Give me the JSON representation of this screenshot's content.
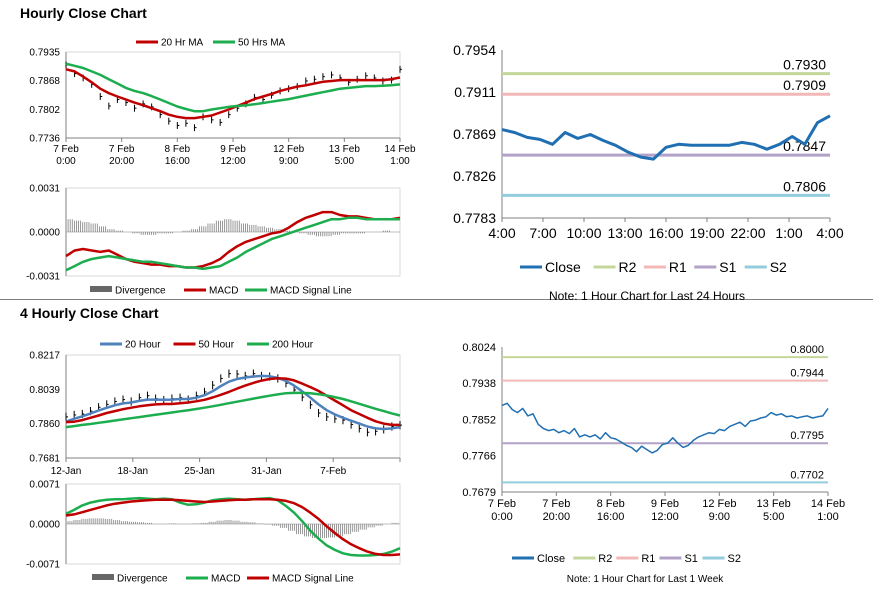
{
  "page": {
    "hourly_title": "Hourly Close Chart",
    "four_hourly_title": "4 Hourly Close Chart"
  },
  "colors": {
    "red": "#c00000",
    "green": "#1cae4e",
    "blue": "#4f81bd",
    "close_line": "#1f6fb2",
    "r2": "#c4d79b",
    "r1": "#f2b7b7",
    "s1": "#b3a2c7",
    "s2": "#93cddd",
    "grid": "#bfbfbf"
  },
  "chart_data": [
    {
      "id": "hourly_price",
      "type": "line",
      "legend": [
        "20 Hr MA",
        "50 Hrs MA"
      ],
      "yticks": [
        "0.7935",
        "0.7868",
        "0.7802",
        "0.7736"
      ],
      "ylim": [
        0.7736,
        0.7935
      ],
      "xticks": [
        [
          "7 Feb",
          "0:00"
        ],
        [
          "7 Feb",
          "20:00"
        ],
        [
          "8 Feb",
          "16:00"
        ],
        [
          "9 Feb",
          "12:00"
        ],
        [
          "12 Feb",
          "9:00"
        ],
        [
          "13 Feb",
          "5:00"
        ],
        [
          "14 Feb",
          "1:00"
        ]
      ],
      "bars_close": [
        0.7905,
        0.7885,
        0.7875,
        0.786,
        0.7832,
        0.781,
        0.7825,
        0.7818,
        0.7805,
        0.7815,
        0.7808,
        0.779,
        0.7775,
        0.7765,
        0.777,
        0.776,
        0.7785,
        0.7778,
        0.7772,
        0.779,
        0.7805,
        0.7815,
        0.783,
        0.7825,
        0.7835,
        0.7845,
        0.785,
        0.7855,
        0.7868,
        0.7872,
        0.7878,
        0.7882,
        0.7875,
        0.7865,
        0.7872,
        0.788,
        0.7875,
        0.7868,
        0.787,
        0.7895
      ],
      "series": [
        {
          "name": "20 Hr MA",
          "color": "red",
          "values": [
            0.7895,
            0.789,
            0.7878,
            0.7865,
            0.785,
            0.784,
            0.7832,
            0.7825,
            0.7818,
            0.7812,
            0.7805,
            0.7798,
            0.779,
            0.7785,
            0.7782,
            0.7782,
            0.7785,
            0.7788,
            0.7795,
            0.7802,
            0.781,
            0.7818,
            0.7826,
            0.7832,
            0.7838,
            0.7845,
            0.785,
            0.7855,
            0.7858,
            0.7862,
            0.7866,
            0.7868,
            0.787,
            0.787,
            0.787,
            0.787,
            0.787,
            0.787,
            0.7872,
            0.7876
          ]
        },
        {
          "name": "50 Hrs MA",
          "color": "green",
          "values": [
            0.7908,
            0.7903,
            0.7898,
            0.789,
            0.7882,
            0.7872,
            0.7862,
            0.7852,
            0.7845,
            0.784,
            0.7833,
            0.7825,
            0.7817,
            0.7809,
            0.7803,
            0.7798,
            0.7798,
            0.7802,
            0.7805,
            0.7808,
            0.781,
            0.7812,
            0.7814,
            0.7817,
            0.782,
            0.7823,
            0.7826,
            0.783,
            0.7834,
            0.7838,
            0.7842,
            0.7846,
            0.785,
            0.7852,
            0.7854,
            0.7856,
            0.7856,
            0.7857,
            0.7858,
            0.786
          ]
        }
      ]
    },
    {
      "id": "hourly_macd",
      "type": "line",
      "legend": [
        "Divergence",
        "MACD",
        "MACD Signal Line"
      ],
      "yticks": [
        "0.0031",
        "0.0000",
        "-0.0031"
      ],
      "ylim": [
        -0.0031,
        0.0031
      ],
      "divergence": [
        0.0009,
        0.0008,
        0.0007,
        0.0006,
        0.0004,
        0.0002,
        0.0001,
        0.0,
        -0.0001,
        -0.0002,
        -0.0002,
        -0.0001,
        -0.0001,
        0.0,
        0.0001,
        0.0002,
        0.0004,
        0.0006,
        0.0008,
        0.0009,
        0.0008,
        0.0006,
        0.0005,
        0.0004,
        0.0003,
        0.0002,
        0.0001,
        0.0,
        -0.0001,
        -0.0002,
        -0.0003,
        -0.0003,
        -0.0002,
        -0.0001,
        -0.0001,
        -0.0001,
        0.0,
        0.0,
        0.0001,
        0.0
      ],
      "series": [
        {
          "name": "MACD",
          "color": "red",
          "values": [
            -0.0017,
            -0.0013,
            -0.0012,
            -0.0013,
            -0.0014,
            -0.0013,
            -0.0016,
            -0.0019,
            -0.0021,
            -0.0022,
            -0.0023,
            -0.0023,
            -0.0024,
            -0.0024,
            -0.0025,
            -0.0025,
            -0.0024,
            -0.0022,
            -0.0019,
            -0.0014,
            -0.001,
            -0.0007,
            -0.0005,
            -0.0003,
            -0.0001,
            0.0,
            0.0003,
            0.0007,
            0.001,
            0.0012,
            0.0014,
            0.0014,
            0.0012,
            0.0011,
            0.0011,
            0.001,
            0.0009,
            0.0009,
            0.0009,
            0.001
          ]
        },
        {
          "name": "MACD Signal Line",
          "color": "green",
          "values": [
            -0.0027,
            -0.0024,
            -0.0021,
            -0.0019,
            -0.0018,
            -0.0017,
            -0.0018,
            -0.0019,
            -0.002,
            -0.0021,
            -0.0021,
            -0.0022,
            -0.0023,
            -0.0024,
            -0.0025,
            -0.0025,
            -0.0026,
            -0.0025,
            -0.0024,
            -0.0021,
            -0.0018,
            -0.0014,
            -0.0011,
            -0.0008,
            -0.0005,
            -0.0003,
            -0.0001,
            0.0001,
            0.0003,
            0.0005,
            0.0007,
            0.0009,
            0.0009,
            0.001,
            0.001,
            0.0009,
            0.0009,
            0.0009,
            0.0009,
            0.0009
          ]
        }
      ]
    },
    {
      "id": "hourly_levels",
      "type": "line",
      "yticks": [
        "0.7954",
        "0.7911",
        "0.7869",
        "0.7826",
        "0.7783"
      ],
      "ylim": [
        0.7783,
        0.7954
      ],
      "xticks": [
        "4:00",
        "7:00",
        "10:00",
        "13:00",
        "16:00",
        "19:00",
        "22:00",
        "1:00",
        "4:00"
      ],
      "levels": [
        {
          "name": "R2",
          "color": "r2",
          "value": 0.793,
          "label": "0.7930"
        },
        {
          "name": "R1",
          "color": "r1",
          "value": 0.7909,
          "label": "0.7909"
        },
        {
          "name": "S1",
          "color": "s1",
          "value": 0.7847,
          "label": "0.7847"
        },
        {
          "name": "S2",
          "color": "s2",
          "value": 0.7806,
          "label": "0.7806"
        }
      ],
      "close": [
        0.7873,
        0.787,
        0.7865,
        0.7863,
        0.7858,
        0.787,
        0.7864,
        0.7868,
        0.7862,
        0.7857,
        0.785,
        0.7845,
        0.7843,
        0.7855,
        0.7858,
        0.7857,
        0.7857,
        0.7857,
        0.7857,
        0.786,
        0.7858,
        0.7853,
        0.7858,
        0.7866,
        0.7858,
        0.788,
        0.7887
      ],
      "legend": [
        "Close",
        "R2",
        "R1",
        "S1",
        "S2"
      ],
      "note": "Note: 1 Hour Chart for Last 24 Hours"
    },
    {
      "id": "four_hourly_price",
      "type": "line",
      "legend": [
        "20 Hour",
        "50 Hour",
        "200 Hour"
      ],
      "yticks": [
        "0.8217",
        "0.8039",
        "0.7860",
        "0.7681"
      ],
      "ylim": [
        0.7681,
        0.8217
      ],
      "xticks": [
        "12-Jan",
        "18-Jan",
        "25-Jan",
        "31-Jan",
        "7-Feb"
      ],
      "bars_close": [
        0.7895,
        0.7905,
        0.791,
        0.7925,
        0.7945,
        0.796,
        0.7975,
        0.7985,
        0.7975,
        0.7995,
        0.8005,
        0.799,
        0.7982,
        0.799,
        0.7995,
        0.7985,
        0.8005,
        0.8025,
        0.806,
        0.8095,
        0.812,
        0.8118,
        0.8108,
        0.812,
        0.8108,
        0.8105,
        0.8095,
        0.807,
        0.8035,
        0.7998,
        0.7958,
        0.7915,
        0.7895,
        0.7885,
        0.7878,
        0.7855,
        0.7835,
        0.7815,
        0.782,
        0.783,
        0.7845,
        0.7852
      ],
      "series": [
        {
          "name": "20 Hour",
          "color": "blue",
          "values": [
            0.787,
            0.7885,
            0.7898,
            0.7912,
            0.7928,
            0.7942,
            0.7955,
            0.7965,
            0.797,
            0.7978,
            0.7985,
            0.7985,
            0.7984,
            0.7985,
            0.7988,
            0.7988,
            0.7995,
            0.8008,
            0.8028,
            0.8055,
            0.8078,
            0.8092,
            0.81,
            0.8105,
            0.8108,
            0.8106,
            0.8098,
            0.8082,
            0.8058,
            0.8028,
            0.7995,
            0.796,
            0.793,
            0.7908,
            0.789,
            0.7875,
            0.786,
            0.7845,
            0.7835,
            0.7832,
            0.7835,
            0.7842
          ]
        },
        {
          "name": "50 Hour",
          "color": "red",
          "values": [
            0.7868,
            0.787,
            0.7878,
            0.789,
            0.7902,
            0.7915,
            0.7925,
            0.7935,
            0.7943,
            0.795,
            0.7955,
            0.796,
            0.7962,
            0.7962,
            0.7966,
            0.797,
            0.7976,
            0.7984,
            0.7996,
            0.801,
            0.8025,
            0.8042,
            0.8058,
            0.8072,
            0.8084,
            0.8092,
            0.8096,
            0.8094,
            0.8085,
            0.8068,
            0.805,
            0.803,
            0.8005,
            0.798,
            0.7955,
            0.793,
            0.791,
            0.789,
            0.7872,
            0.786,
            0.7853,
            0.7853
          ]
        },
        {
          "name": "200 Hour",
          "color": "green",
          "values": [
            0.7842,
            0.7847,
            0.7853,
            0.7858,
            0.7864,
            0.787,
            0.7876,
            0.7882,
            0.7888,
            0.7894,
            0.79,
            0.7906,
            0.7912,
            0.7918,
            0.7924,
            0.793,
            0.7936,
            0.7943,
            0.795,
            0.7958,
            0.7966,
            0.7974,
            0.7982,
            0.799,
            0.7998,
            0.8005,
            0.8012,
            0.8018,
            0.802,
            0.802,
            0.8018,
            0.8013,
            0.8006,
            0.7998,
            0.7988,
            0.7976,
            0.7963,
            0.795,
            0.7937,
            0.7925,
            0.7913,
            0.7902
          ]
        }
      ]
    },
    {
      "id": "four_hourly_macd",
      "type": "line",
      "legend": [
        "Divergence",
        "MACD",
        "MACD Signal Line"
      ],
      "yticks": [
        "0.0071",
        "0.0000",
        "-0.0071"
      ],
      "ylim": [
        -0.0071,
        0.0071
      ],
      "divergence": [
        0.0005,
        0.0007,
        0.0009,
        0.001,
        0.001,
        0.0009,
        0.0007,
        0.0005,
        0.0004,
        0.0003,
        0.0002,
        0.0,
        0.0,
        0.0001,
        0.0,
        0.0,
        0.0001,
        0.0002,
        0.0004,
        0.0006,
        0.0007,
        0.0006,
        0.0004,
        0.0003,
        0.0001,
        -0.0001,
        -0.0003,
        -0.0007,
        -0.0012,
        -0.0018,
        -0.0022,
        -0.0025,
        -0.0025,
        -0.0024,
        -0.0022,
        -0.0018,
        -0.0014,
        -0.001,
        -0.0006,
        -0.0003,
        0.0,
        0.0002
      ],
      "series": [
        {
          "name": "MACD",
          "color": "green",
          "values": [
            0.0018,
            0.0025,
            0.0033,
            0.0038,
            0.0041,
            0.0043,
            0.0044,
            0.0044,
            0.0045,
            0.0046,
            0.0045,
            0.0044,
            0.0045,
            0.0044,
            0.0038,
            0.0034,
            0.0035,
            0.0038,
            0.0042,
            0.0044,
            0.0045,
            0.0044,
            0.0043,
            0.0044,
            0.0045,
            0.0046,
            0.0042,
            0.0032,
            0.002,
            0.0005,
            -0.0012,
            -0.0026,
            -0.0038,
            -0.0046,
            -0.0052,
            -0.0055,
            -0.0056,
            -0.0056,
            -0.0055,
            -0.0053,
            -0.0049,
            -0.0043
          ]
        },
        {
          "name": "MACD Signal Line",
          "color": "red",
          "values": [
            0.0015,
            0.0017,
            0.0021,
            0.0025,
            0.0029,
            0.0033,
            0.0036,
            0.0038,
            0.004,
            0.0041,
            0.0042,
            0.0043,
            0.0043,
            0.0043,
            0.0042,
            0.0041,
            0.004,
            0.0039,
            0.004,
            0.0041,
            0.0042,
            0.0043,
            0.0043,
            0.0044,
            0.0044,
            0.0044,
            0.0043,
            0.0041,
            0.0037,
            0.003,
            0.002,
            0.0009,
            -0.0004,
            -0.0016,
            -0.0027,
            -0.0036,
            -0.0043,
            -0.0049,
            -0.0053,
            -0.0055,
            -0.0055,
            -0.0054
          ]
        }
      ]
    },
    {
      "id": "four_hourly_levels",
      "type": "line",
      "yticks": [
        "0.8024",
        "0.7938",
        "0.7852",
        "0.7766",
        "0.7679"
      ],
      "ylim": [
        0.7679,
        0.8024
      ],
      "xticks": [
        [
          "7 Feb",
          "0:00"
        ],
        [
          "7 Feb",
          "20:00"
        ],
        [
          "8 Feb",
          "16:00"
        ],
        [
          "9 Feb",
          "12:00"
        ],
        [
          "12 Feb",
          "9:00"
        ],
        [
          "13 Feb",
          "5:00"
        ],
        [
          "14 Feb",
          "1:00"
        ]
      ],
      "levels": [
        {
          "name": "R2",
          "color": "r2",
          "value": 0.8,
          "label": "0.8000"
        },
        {
          "name": "R1",
          "color": "r1",
          "value": 0.7944,
          "label": "0.7944"
        },
        {
          "name": "S1",
          "color": "s1",
          "value": 0.7795,
          "label": "0.7795"
        },
        {
          "name": "S2",
          "color": "s2",
          "value": 0.7702,
          "label": "0.7702"
        }
      ],
      "close": [
        0.7885,
        0.789,
        0.7875,
        0.7868,
        0.7878,
        0.786,
        0.7865,
        0.784,
        0.783,
        0.7825,
        0.7828,
        0.782,
        0.7825,
        0.7818,
        0.783,
        0.781,
        0.7815,
        0.781,
        0.7815,
        0.7805,
        0.782,
        0.7808,
        0.7805,
        0.7798,
        0.779,
        0.7785,
        0.7775,
        0.7788,
        0.778,
        0.7772,
        0.7778,
        0.7792,
        0.7795,
        0.7808,
        0.7795,
        0.7785,
        0.779,
        0.7802,
        0.781,
        0.7815,
        0.782,
        0.7818,
        0.7828,
        0.7825,
        0.7835,
        0.784,
        0.7845,
        0.7835,
        0.7848,
        0.785,
        0.7855,
        0.7858,
        0.7868,
        0.7862,
        0.7865,
        0.7858,
        0.786,
        0.7855,
        0.7858,
        0.786,
        0.7855,
        0.7858,
        0.786,
        0.7878
      ],
      "legend": [
        "Close",
        "R2",
        "R1",
        "S1",
        "S2"
      ],
      "note": "Note: 1 Hour Chart for Last 1 Week"
    }
  ]
}
